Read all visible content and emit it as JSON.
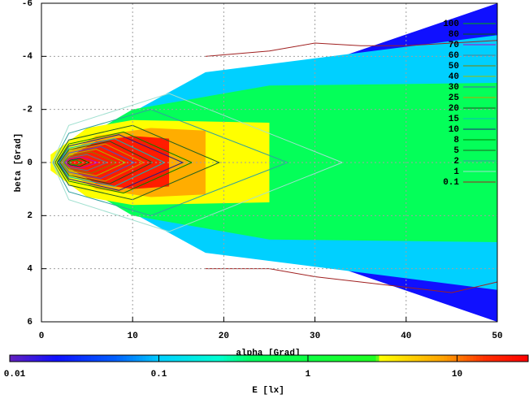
{
  "chart_data": {
    "type": "contour",
    "xlabel": "alpha [Grad]",
    "ylabel": "beta [Grad]",
    "xlim": [
      0,
      50
    ],
    "xticks": [
      0,
      10,
      20,
      30,
      40,
      50
    ],
    "ylim": [
      -6,
      6
    ],
    "yticks": [
      -6,
      -4,
      -2,
      0,
      2,
      4,
      6
    ],
    "yreverse": true,
    "grid": true,
    "legend": "top-right",
    "colorbar": {
      "label": "E [lx]",
      "lim": [
        0.01,
        30
      ],
      "ticks": [
        0.01,
        0.1,
        1,
        10
      ],
      "log": true,
      "stops": [
        {
          "value": 0.01,
          "color": "#6020c0"
        },
        {
          "value": 0.02,
          "color": "#1010ff"
        },
        {
          "value": 0.05,
          "color": "#0060ff"
        },
        {
          "value": 0.1,
          "color": "#00d0ff"
        },
        {
          "value": 0.25,
          "color": "#00ffd0"
        },
        {
          "value": 0.4,
          "color": "#00ff60"
        },
        {
          "value": 2.8,
          "color": "#20ff20"
        },
        {
          "value": 3,
          "color": "#ffff00"
        },
        {
          "value": 8,
          "color": "#ffa000"
        },
        {
          "value": 15,
          "color": "#ff3000"
        },
        {
          "value": 30,
          "color": "#ff0000"
        }
      ]
    },
    "regions": [
      {
        "value": 0.02,
        "x": [
          1.5,
          50,
          50,
          1.5
        ],
        "y": [
          -0.3,
          -6,
          6,
          0.3
        ]
      },
      {
        "value": 0.1,
        "x": [
          1.5,
          18,
          50,
          50,
          18,
          1.5
        ],
        "y": [
          -0.3,
          -3.4,
          -4.8,
          4.8,
          3.4,
          0.3
        ]
      },
      {
        "value": 0.5,
        "x": [
          1.5,
          10,
          25,
          50,
          50,
          25,
          10,
          1.5
        ],
        "y": [
          -0.3,
          -2,
          -2.9,
          -3,
          3,
          2.9,
          2,
          0.3
        ]
      },
      {
        "value": 3,
        "x": [
          1,
          5,
          10,
          25,
          25,
          10,
          5,
          1
        ],
        "y": [
          -0.3,
          -1.3,
          -1.6,
          -1.5,
          1.5,
          1.6,
          1.3,
          0.3
        ]
      },
      {
        "value": 7,
        "x": [
          2,
          6,
          12,
          18,
          18,
          12,
          6,
          2
        ],
        "y": [
          -0.2,
          -1,
          -1.3,
          -1.2,
          1.2,
          1.3,
          1,
          0.2
        ]
      },
      {
        "value": 20,
        "x": [
          2.5,
          6,
          10,
          14,
          14,
          10,
          6,
          2.5
        ],
        "y": [
          -0.1,
          -0.8,
          -1,
          -0.9,
          0.9,
          1,
          0.8,
          0.1
        ]
      }
    ],
    "series": [
      {
        "name": "100",
        "color": "#00b000",
        "x": [
          3,
          3.3,
          3.8,
          4.4,
          3.8,
          3.3,
          3
        ],
        "y": [
          0,
          -0.06,
          -0.1,
          0,
          0.1,
          0.06,
          0
        ]
      },
      {
        "name": "80",
        "color": "#006000",
        "x": [
          2.8,
          3.2,
          4.2,
          5.2,
          4.2,
          3.2,
          2.8
        ],
        "y": [
          0,
          -0.1,
          -0.15,
          0,
          0.15,
          0.1,
          0
        ]
      },
      {
        "name": "70",
        "color": "#c000c0",
        "x": [
          2.6,
          3.1,
          4.5,
          6.2,
          4.5,
          3.1,
          2.6
        ],
        "y": [
          0,
          -0.12,
          -0.2,
          0,
          0.2,
          0.12,
          0
        ]
      },
      {
        "name": "60",
        "color": "#508090",
        "x": [
          2.5,
          3,
          5,
          7.2,
          5,
          3,
          2.5
        ],
        "y": [
          0,
          -0.18,
          -0.3,
          0,
          0.3,
          0.18,
          0
        ]
      },
      {
        "name": "50",
        "color": "#808000",
        "x": [
          2.4,
          3,
          5.5,
          8.2,
          5.5,
          3,
          2.4
        ],
        "y": [
          0,
          -0.24,
          -0.4,
          0,
          0.4,
          0.24,
          0
        ]
      },
      {
        "name": "40",
        "color": "#a0c000",
        "x": [
          2.3,
          3,
          6,
          9.2,
          6,
          3,
          2.3
        ],
        "y": [
          0,
          -0.3,
          -0.5,
          0,
          0.5,
          0.3,
          0
        ]
      },
      {
        "name": "30",
        "color": "#4060c0",
        "x": [
          2.2,
          3,
          6.5,
          10.2,
          6.5,
          3,
          2.2
        ],
        "y": [
          0,
          -0.36,
          -0.6,
          0,
          0.6,
          0.36,
          0
        ]
      },
      {
        "name": "25",
        "color": "#c0a000",
        "x": [
          2.1,
          3,
          7,
          11.2,
          7,
          3,
          2.1
        ],
        "y": [
          0,
          -0.42,
          -0.7,
          0,
          0.7,
          0.42,
          0
        ]
      },
      {
        "name": "20",
        "color": "#205020",
        "x": [
          2,
          3,
          7.5,
          12.2,
          7.5,
          3,
          2
        ],
        "y": [
          0,
          -0.48,
          -0.8,
          0,
          0.8,
          0.48,
          0
        ]
      },
      {
        "name": "15",
        "color": "#00c0c0",
        "x": [
          1.9,
          3,
          8,
          13.5,
          8,
          3,
          1.9
        ],
        "y": [
          0,
          -0.54,
          -0.9,
          0,
          0.9,
          0.54,
          0
        ]
      },
      {
        "name": "10",
        "color": "#202080",
        "x": [
          1.8,
          3,
          8.5,
          15.5,
          8.5,
          3,
          1.8
        ],
        "y": [
          0,
          -0.62,
          -1.05,
          0,
          1.05,
          0.62,
          0
        ]
      },
      {
        "name": "8",
        "color": "#008000",
        "x": [
          1.7,
          3,
          9,
          16.5,
          9,
          3,
          1.7
        ],
        "y": [
          0,
          -0.7,
          -1.15,
          0,
          1.15,
          0.7,
          0
        ]
      },
      {
        "name": "5",
        "color": "#206020",
        "x": [
          1.5,
          3,
          10,
          19.5,
          10,
          3,
          1.5
        ],
        "y": [
          0,
          -0.85,
          -1.4,
          0,
          1.4,
          0.85,
          0
        ]
      },
      {
        "name": "2",
        "color": "#30a0a0",
        "x": [
          1.3,
          3,
          12,
          27,
          12,
          3,
          1.3
        ],
        "y": [
          0,
          -1.1,
          -2,
          0,
          2,
          1.1,
          0
        ]
      },
      {
        "name": "1",
        "color": "#a0e0d0",
        "x": [
          1.2,
          3,
          14,
          33,
          14,
          3,
          1.2
        ],
        "y": [
          0,
          -1.4,
          -2.6,
          0,
          2.6,
          1.4,
          0
        ]
      },
      {
        "name": "0.1",
        "color": "#a02020",
        "x": [
          18,
          25,
          30,
          35,
          40,
          45,
          50,
          null,
          18,
          25,
          30,
          35,
          40,
          45,
          50
        ],
        "y": [
          -4,
          -4.2,
          -4.5,
          -4.4,
          -4.4,
          -4.5,
          -4.6,
          null,
          4,
          4,
          4.3,
          4.5,
          4.7,
          4.9,
          4.5
        ]
      }
    ]
  }
}
